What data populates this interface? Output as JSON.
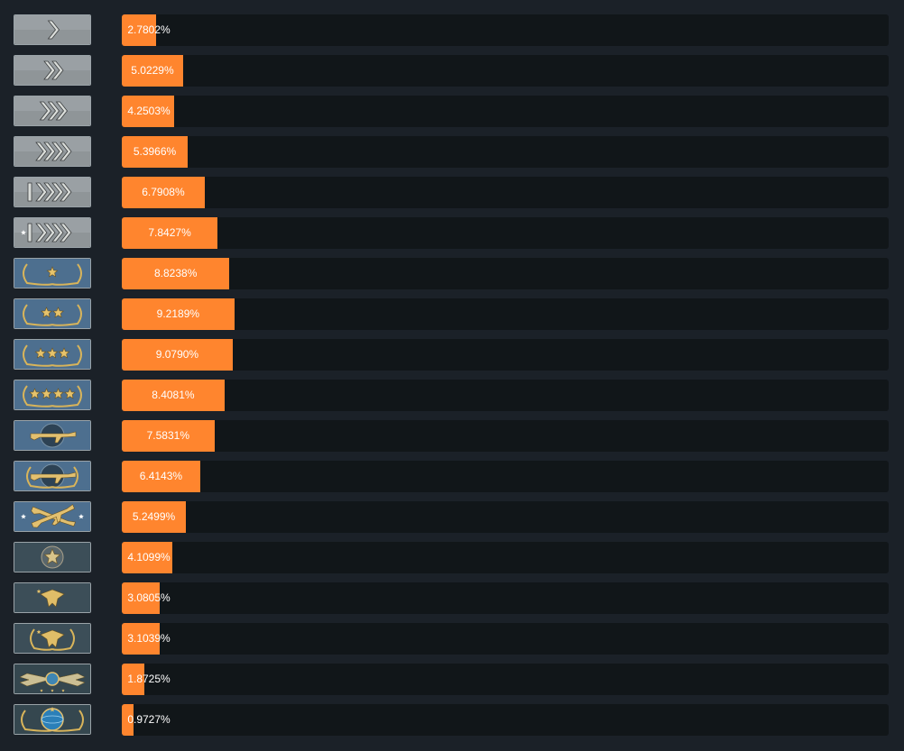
{
  "chart_data": {
    "type": "bar",
    "orientation": "horizontal",
    "xlim": [
      0,
      100
    ],
    "grid": false,
    "categories": [
      "silver-1",
      "silver-2",
      "silver-3",
      "silver-4",
      "silver-elite",
      "silver-elite-master",
      "gold-nova-1",
      "gold-nova-2",
      "gold-nova-3",
      "gold-nova-master",
      "master-guardian-1",
      "master-guardian-2",
      "master-guardian-elite",
      "distinguished-master-guardian",
      "legendary-eagle",
      "legendary-eagle-master",
      "supreme-master-first-class",
      "global-elite"
    ],
    "values": [
      2.7802,
      5.0229,
      4.2503,
      5.3966,
      6.7908,
      7.8427,
      8.8238,
      9.2189,
      9.079,
      8.4081,
      7.5831,
      6.4143,
      5.2499,
      4.1099,
      3.0805,
      3.1039,
      1.8725,
      0.9727
    ],
    "labels": [
      "2.7802%",
      "5.0229%",
      "4.2503%",
      "5.3966%",
      "6.7908%",
      "7.8427%",
      "8.8238%",
      "9.2189%",
      "9.0790%",
      "8.4081%",
      "7.5831%",
      "6.4143%",
      "5.2499%",
      "4.1099%",
      "3.0805%",
      "3.1039%",
      "1.8725%",
      "0.9727%"
    ],
    "colors": {
      "background": "#1b2128",
      "track": "#111619",
      "bar": "#ff852e",
      "label": "#ffffff"
    }
  },
  "badges": [
    {
      "icon": "silver-1-rank-icon",
      "kind": "silver",
      "chevrons": 1,
      "bar": false
    },
    {
      "icon": "silver-2-rank-icon",
      "kind": "silver",
      "chevrons": 2,
      "bar": false
    },
    {
      "icon": "silver-3-rank-icon",
      "kind": "silver",
      "chevrons": 3,
      "bar": false
    },
    {
      "icon": "silver-4-rank-icon",
      "kind": "silver",
      "chevrons": 4,
      "bar": false
    },
    {
      "icon": "silver-elite-rank-icon",
      "kind": "silver",
      "chevrons": 4,
      "bar": true
    },
    {
      "icon": "silver-elite-master-rank-icon",
      "kind": "silver",
      "chevrons": 4,
      "bar": true,
      "star": true
    },
    {
      "icon": "gold-nova-1-rank-icon",
      "kind": "nova",
      "stars": 1
    },
    {
      "icon": "gold-nova-2-rank-icon",
      "kind": "nova",
      "stars": 2
    },
    {
      "icon": "gold-nova-3-rank-icon",
      "kind": "nova",
      "stars": 3
    },
    {
      "icon": "gold-nova-master-rank-icon",
      "kind": "nova",
      "stars": 4
    },
    {
      "icon": "master-guardian-1-rank-icon",
      "kind": "guardian",
      "wreath": false,
      "crossed": false
    },
    {
      "icon": "master-guardian-2-rank-icon",
      "kind": "guardian",
      "wreath": true,
      "crossed": false
    },
    {
      "icon": "master-guardian-elite-rank-icon",
      "kind": "guardian",
      "wreath": false,
      "crossed": true
    },
    {
      "icon": "distinguished-master-guardian-rank-icon",
      "kind": "dmg"
    },
    {
      "icon": "legendary-eagle-rank-icon",
      "kind": "eagle",
      "wreath": false
    },
    {
      "icon": "legendary-eagle-master-rank-icon",
      "kind": "eagle",
      "wreath": true
    },
    {
      "icon": "supreme-master-first-class-rank-icon",
      "kind": "supreme"
    },
    {
      "icon": "global-elite-rank-icon",
      "kind": "global"
    }
  ]
}
